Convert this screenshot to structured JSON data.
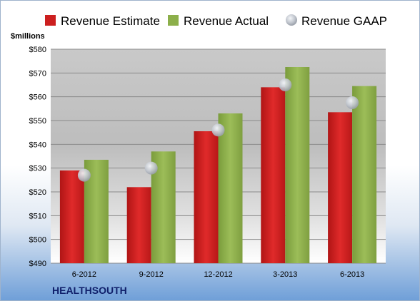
{
  "chart_data": {
    "type": "bar",
    "categories": [
      "6-2012",
      "9-2012",
      "12-2012",
      "3-2013",
      "6-2013"
    ],
    "series": [
      {
        "name": "Revenue Estimate",
        "type": "bar",
        "color": "#cc1f1f",
        "values": [
          529,
          522,
          545.5,
          564,
          553.5
        ]
      },
      {
        "name": "Revenue Actual",
        "type": "bar",
        "color": "#8caf4a",
        "values": [
          533.5,
          537,
          553,
          572.5,
          564.5
        ]
      },
      {
        "name": "Revenue GAAP",
        "type": "marker",
        "color": "#c8ccd4",
        "values": [
          527,
          530,
          546,
          565,
          557.5
        ]
      }
    ],
    "ylabel": "$millions",
    "ylim": [
      490,
      580
    ],
    "yticks": [
      "$490",
      "$500",
      "$510",
      "$520",
      "$530",
      "$540",
      "$550",
      "$560",
      "$570",
      "$580"
    ],
    "grid": true,
    "legend": "top",
    "company": "HEALTHSOUTH"
  }
}
